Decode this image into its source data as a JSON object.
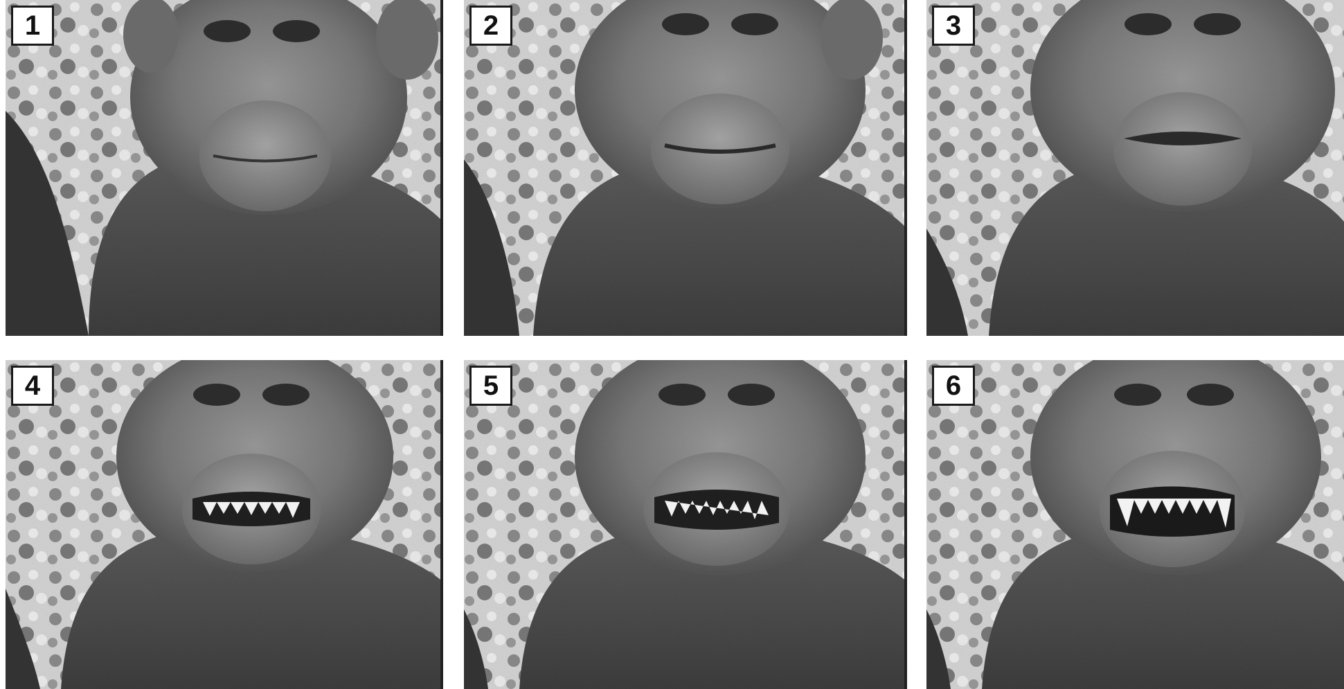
{
  "panels": [
    {
      "label": "1"
    },
    {
      "label": "2"
    },
    {
      "label": "3"
    },
    {
      "label": "4"
    },
    {
      "label": "5"
    },
    {
      "label": "6"
    }
  ],
  "colors": {
    "background": "#ffffff",
    "photo_light": "#d8d8d8",
    "photo_mid": "#8a8a8a",
    "photo_dark": "#3a3a3a",
    "label_border": "#1a1a1a"
  }
}
